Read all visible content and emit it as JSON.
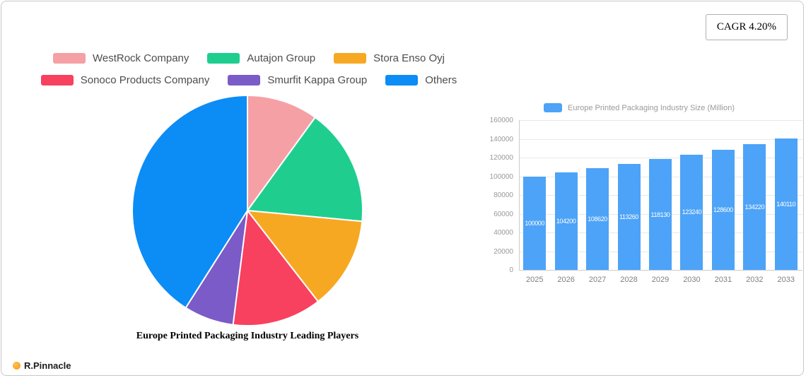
{
  "card": {
    "cagr_label": "CAGR 4.20%"
  },
  "branding": {
    "logo_text": "R.Pinnacle"
  },
  "chart_data": [
    {
      "type": "pie",
      "title": "Europe Printed Packaging Industry Leading Players",
      "legend_position": "top-left",
      "start_angle_deg": -90,
      "direction": "clockwise",
      "segments": [
        {
          "label": "WestRock Company",
          "value": 10,
          "color": "#F5A0A5"
        },
        {
          "label": "Autajon Group",
          "value": 16.5,
          "color": "#1FCE8F"
        },
        {
          "label": "Stora Enso Oyj",
          "value": 13,
          "color": "#F7A823"
        },
        {
          "label": "Sonoco Products Company",
          "value": 12.5,
          "color": "#F8405F"
        },
        {
          "label": "Smurfit Kappa Group",
          "value": 7,
          "color": "#7A5BC7"
        },
        {
          "label": "Others",
          "value": 41,
          "color": "#0C8CF5"
        }
      ]
    },
    {
      "type": "bar",
      "series_name": "Europe Printed Packaging Industry Size (Million)",
      "categories": [
        "2025",
        "2026",
        "2027",
        "2028",
        "2029",
        "2030",
        "2031",
        "2032",
        "2033"
      ],
      "values": [
        100000,
        104200,
        108620,
        113260,
        118130,
        123240,
        128600,
        134220,
        140110
      ],
      "ylim": [
        0,
        160000
      ],
      "yticks": [
        0,
        20000,
        40000,
        60000,
        80000,
        100000,
        120000,
        140000,
        160000
      ],
      "bar_color": "#4DA3F7",
      "grid": true,
      "legend_position": "top",
      "value_labels": "inside-white"
    }
  ]
}
